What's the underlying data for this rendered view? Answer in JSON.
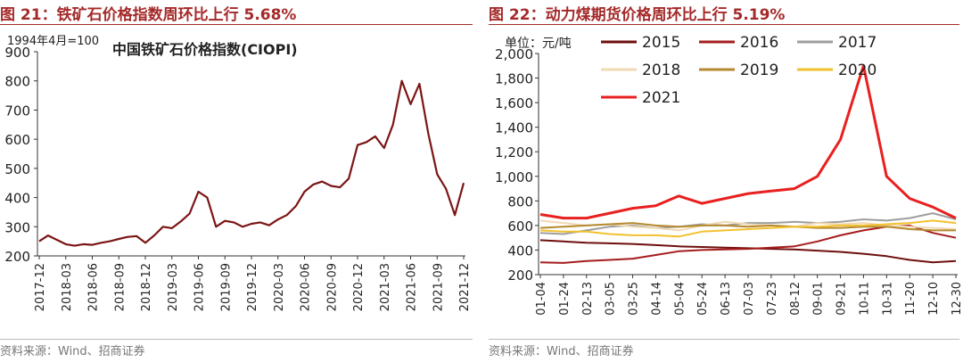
{
  "left": {
    "figure_title": "图 21：铁矿石价格指数周环比上行 5.68%",
    "source": "资料来源：Wind、招商证券",
    "chart_data": {
      "type": "line",
      "title": "中国铁矿石价格指数(CIOPI)",
      "unit_note": "1994年4月=100",
      "color": "#7b1515",
      "ylim": [
        200,
        900
      ],
      "yticks": [
        200,
        300,
        400,
        500,
        600,
        700,
        800,
        900
      ],
      "xticks": [
        "2017-12",
        "2018-03",
        "2018-06",
        "2018-09",
        "2018-12",
        "2019-03",
        "2019-06",
        "2019-09",
        "2019-12",
        "2020-03",
        "2020-06",
        "2020-09",
        "2020-12",
        "2021-03",
        "2021-06",
        "2021-09",
        "2021-12"
      ],
      "x": [
        "2017-12",
        "2018-01",
        "2018-02",
        "2018-03",
        "2018-04",
        "2018-05",
        "2018-06",
        "2018-07",
        "2018-08",
        "2018-09",
        "2018-10",
        "2018-11",
        "2018-12",
        "2019-01",
        "2019-02",
        "2019-03",
        "2019-04",
        "2019-05",
        "2019-06",
        "2019-07",
        "2019-08",
        "2019-09",
        "2019-10",
        "2019-11",
        "2019-12",
        "2020-01",
        "2020-02",
        "2020-03",
        "2020-04",
        "2020-05",
        "2020-06",
        "2020-07",
        "2020-08",
        "2020-09",
        "2020-10",
        "2020-11",
        "2020-12",
        "2021-01",
        "2021-02",
        "2021-03",
        "2021-04",
        "2021-05",
        "2021-06",
        "2021-07",
        "2021-08",
        "2021-09",
        "2021-10",
        "2021-11",
        "2021-12"
      ],
      "values": [
        250,
        270,
        255,
        240,
        235,
        240,
        238,
        245,
        250,
        258,
        265,
        268,
        245,
        270,
        300,
        295,
        318,
        345,
        420,
        400,
        300,
        320,
        315,
        300,
        310,
        315,
        305,
        325,
        340,
        370,
        420,
        445,
        455,
        440,
        435,
        465,
        580,
        590,
        610,
        570,
        650,
        800,
        720,
        790,
        620,
        480,
        430,
        340,
        450
      ]
    }
  },
  "right": {
    "figure_title": "图 22：动力煤期货价格周环比上行 5.19%",
    "source": "资料来源：Wind、招商证券",
    "chart_data": {
      "type": "line",
      "unit": "单位：元/吨",
      "ylim": [
        200,
        2000
      ],
      "yticks": [
        200,
        400,
        600,
        800,
        1000,
        1200,
        1400,
        1600,
        1800,
        2000
      ],
      "ytick_labels": [
        "200",
        "400",
        "600",
        "800",
        "1,000",
        "1,200",
        "1,400",
        "1,600",
        "1,800",
        "2,000"
      ],
      "xticks": [
        "01-04",
        "01-24",
        "02-13",
        "03-05",
        "03-25",
        "04-14",
        "05-04",
        "05-24",
        "06-13",
        "07-03",
        "07-23",
        "08-12",
        "09-01",
        "09-21",
        "10-11",
        "10-31",
        "11-20",
        "12-10",
        "12-30"
      ],
      "series": [
        {
          "name": "2015",
          "color": "#6e0e0e",
          "width": 2,
          "values": [
            480,
            470,
            460,
            455,
            450,
            440,
            430,
            425,
            420,
            415,
            410,
            405,
            395,
            385,
            370,
            350,
            320,
            300,
            310
          ]
        },
        {
          "name": "2016",
          "color": "#a51c1c",
          "width": 2,
          "values": [
            300,
            295,
            310,
            320,
            330,
            360,
            390,
            400,
            405,
            410,
            420,
            430,
            470,
            520,
            560,
            590,
            600,
            540,
            500
          ]
        },
        {
          "name": "2017",
          "color": "#9e9e9e",
          "width": 2,
          "values": [
            540,
            530,
            560,
            590,
            600,
            580,
            590,
            610,
            600,
            620,
            620,
            630,
            620,
            630,
            650,
            640,
            660,
            700,
            650
          ]
        },
        {
          "name": "2018",
          "color": "#f0d9b5",
          "width": 2,
          "values": [
            640,
            620,
            600,
            610,
            590,
            580,
            560,
            600,
            630,
            610,
            600,
            590,
            620,
            610,
            620,
            600,
            590,
            580,
            570
          ]
        },
        {
          "name": "2019",
          "color": "#b5892e",
          "width": 2,
          "values": [
            580,
            590,
            600,
            610,
            620,
            600,
            590,
            600,
            600,
            590,
            600,
            590,
            580,
            580,
            590,
            590,
            570,
            560,
            560
          ]
        },
        {
          "name": "2020",
          "color": "#f2c12e",
          "width": 2,
          "values": [
            560,
            550,
            550,
            530,
            520,
            520,
            510,
            550,
            560,
            570,
            580,
            590,
            590,
            600,
            600,
            610,
            620,
            640,
            620
          ]
        },
        {
          "name": "2021",
          "color": "#e8201f",
          "width": 3,
          "values": [
            690,
            660,
            660,
            700,
            740,
            760,
            840,
            780,
            820,
            860,
            880,
            900,
            1000,
            1300,
            1900,
            1000,
            820,
            750,
            660
          ]
        }
      ]
    }
  }
}
